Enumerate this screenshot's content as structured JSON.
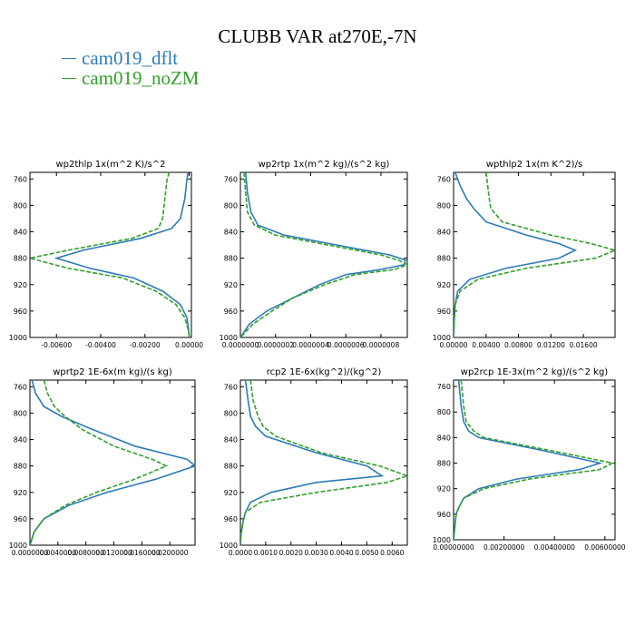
{
  "title": "CLUBB VAR at270E,-7N",
  "colors": {
    "blue": "#2c7bb6",
    "green": "#33a02c"
  },
  "legend": [
    {
      "name": "cam019_dflt",
      "color": "#2c7bb6",
      "style": "solid"
    },
    {
      "name": "cam019_noZM",
      "color": "#33a02c",
      "style": "dashed"
    }
  ],
  "chart_data": [
    {
      "type": "line",
      "title": "wp2thlp  1x(m^2 K)/s^2",
      "xlim": [
        -0.0072,
        0.0001
      ],
      "ylim": [
        1000,
        750
      ],
      "xticks": [
        -0.006,
        -0.004,
        -0.002,
        0.0
      ],
      "xtick_labels": [
        "-0.00600",
        "-0.00400",
        "-0.00200",
        "0.00000"
      ],
      "yticks": [
        760,
        800,
        840,
        880,
        920,
        960,
        1000
      ],
      "series": [
        {
          "name": "cam019_dflt",
          "y": [
            750,
            760,
            790,
            820,
            835,
            850,
            868,
            880,
            895,
            910,
            930,
            950,
            970,
            990,
            1000
          ],
          "x": [
            -5e-05,
            -0.0001,
            -0.0002,
            -0.0004,
            -0.0008,
            -0.0022,
            -0.0048,
            -0.006,
            -0.0045,
            -0.0025,
            -0.0012,
            -0.0004,
            -0.0001,
            -2e-05,
            0.0
          ]
        },
        {
          "name": "cam019_noZM",
          "y": [
            750,
            760,
            790,
            820,
            835,
            850,
            868,
            880,
            895,
            910,
            930,
            950,
            970,
            990,
            1000
          ],
          "x": [
            -0.0009,
            -0.001,
            -0.0011,
            -0.0012,
            -0.0014,
            -0.0026,
            -0.0055,
            -0.0072,
            -0.0055,
            -0.003,
            -0.0015,
            -0.0006,
            -0.0002,
            -3e-05,
            0.0
          ]
        }
      ]
    },
    {
      "type": "line",
      "title": "wp2rtp  1x(m^2 kg)/(s^2 kg)",
      "xlim": [
        0.0,
        9.5e-07
      ],
      "ylim": [
        1000,
        750
      ],
      "xticks": [
        0.0,
        2e-07,
        4e-07,
        6e-07,
        8e-07
      ],
      "xtick_labels": [
        "0.0000000",
        "0.0000002",
        "0.0000004",
        "0.0000006",
        "0.0000008"
      ],
      "yticks": [
        760,
        800,
        840,
        880,
        920,
        960,
        1000
      ],
      "series": [
        {
          "name": "cam019_dflt",
          "y": [
            750,
            780,
            810,
            830,
            845,
            860,
            875,
            883,
            890,
            897,
            905,
            920,
            940,
            960,
            980,
            1000
          ],
          "x": [
            3e-08,
            4e-08,
            6e-08,
            1e-07,
            2.5e-07,
            5.5e-07,
            8.5e-07,
            9.4e-07,
            9.3e-07,
            8e-07,
            6e-07,
            4.5e-07,
            3e-07,
            1.5e-07,
            5e-08,
            0.0
          ]
        },
        {
          "name": "cam019_noZM",
          "y": [
            750,
            780,
            810,
            830,
            845,
            860,
            875,
            883,
            890,
            897,
            905,
            920,
            940,
            960,
            980,
            1000
          ],
          "x": [
            2e-08,
            3e-08,
            4e-08,
            8e-08,
            2e-07,
            5e-07,
            8e-07,
            9e-07,
            9.5e-07,
            8.8e-07,
            6.5e-07,
            4.8e-07,
            3e-07,
            1.8e-07,
            7e-08,
            0.0
          ]
        }
      ]
    },
    {
      "type": "line",
      "title": "wpthlp2  1x(m K^2)/s",
      "xlim": [
        0.0,
        0.0199
      ],
      "ylim": [
        1000,
        750
      ],
      "xticks": [
        0.0,
        0.004,
        0.008,
        0.012,
        0.016
      ],
      "xtick_labels": [
        "0.00000",
        "0.00400",
        "0.00800",
        "0.01200",
        "0.01600"
      ],
      "yticks": [
        760,
        800,
        840,
        880,
        920,
        960,
        1000
      ],
      "series": [
        {
          "name": "cam019_dflt",
          "y": [
            750,
            770,
            790,
            805,
            825,
            845,
            858,
            868,
            880,
            895,
            912,
            930,
            950,
            970,
            1000
          ],
          "x": [
            0.0002,
            0.0008,
            0.0016,
            0.0025,
            0.004,
            0.009,
            0.013,
            0.015,
            0.013,
            0.0065,
            0.002,
            0.0005,
            0.0002,
            0.0001,
            0.0
          ]
        },
        {
          "name": "cam019_noZM",
          "y": [
            750,
            770,
            790,
            805,
            825,
            845,
            858,
            868,
            880,
            895,
            912,
            930,
            950,
            970,
            1000
          ],
          "x": [
            0.004,
            0.0042,
            0.0044,
            0.0046,
            0.006,
            0.012,
            0.017,
            0.0199,
            0.0175,
            0.009,
            0.003,
            0.0008,
            0.0002,
            0.0001,
            0.0
          ]
        }
      ]
    },
    {
      "type": "line",
      "title": "wprtp2  1E-6x(m kg)/(s kg)",
      "xlim": [
        0.0,
        0.0236
      ],
      "ylim": [
        1000,
        750
      ],
      "xticks": [
        0.0,
        0.004,
        0.008,
        0.012,
        0.016,
        0.02
      ],
      "xtick_labels": [
        "0.0000000",
        "0.0040000",
        "0.0080000",
        "0.0120000",
        "0.0160000",
        "0.0200000"
      ],
      "yticks": [
        760,
        800,
        840,
        880,
        920,
        960,
        1000
      ],
      "series": [
        {
          "name": "cam019_dflt",
          "y": [
            750,
            770,
            790,
            805,
            825,
            850,
            870,
            880,
            900,
            920,
            940,
            960,
            980,
            1000
          ],
          "x": [
            0.0003,
            0.0008,
            0.002,
            0.0045,
            0.009,
            0.015,
            0.0225,
            0.0236,
            0.018,
            0.011,
            0.0055,
            0.002,
            0.0006,
            0.0
          ]
        },
        {
          "name": "cam019_noZM",
          "y": [
            750,
            770,
            790,
            805,
            825,
            850,
            870,
            880,
            900,
            920,
            940,
            960,
            980,
            1000
          ],
          "x": [
            0.002,
            0.0025,
            0.0035,
            0.005,
            0.0075,
            0.012,
            0.0175,
            0.0195,
            0.015,
            0.0095,
            0.005,
            0.002,
            0.0006,
            0.0
          ]
        }
      ]
    },
    {
      "type": "line",
      "title": "rcp2  1E-6x(kg^2)/(kg^2)",
      "xlim": [
        0.0,
        0.0066
      ],
      "ylim": [
        1000,
        750
      ],
      "xticks": [
        0.0,
        0.001,
        0.002,
        0.003,
        0.004,
        0.005,
        0.006
      ],
      "xtick_labels": [
        "0.0000",
        "0.0010",
        "0.0020",
        "0.0030",
        "0.0040",
        "0.0050",
        "0.0060"
      ],
      "yticks": [
        760,
        800,
        840,
        880,
        920,
        960,
        1000
      ],
      "series": [
        {
          "name": "cam019_dflt",
          "y": [
            750,
            780,
            805,
            820,
            835,
            860,
            880,
            895,
            905,
            920,
            935,
            950,
            965,
            985,
            1000
          ],
          "x": [
            0.0002,
            0.0003,
            0.0004,
            0.0006,
            0.001,
            0.003,
            0.005,
            0.0056,
            0.003,
            0.0012,
            0.0004,
            0.0002,
            0.0001,
            2e-05,
            0.0
          ]
        },
        {
          "name": "cam019_noZM",
          "y": [
            750,
            780,
            805,
            820,
            835,
            860,
            880,
            895,
            905,
            920,
            935,
            950,
            965,
            985,
            1000
          ],
          "x": [
            0.0004,
            0.0005,
            0.0007,
            0.0009,
            0.0014,
            0.0032,
            0.0055,
            0.0066,
            0.0058,
            0.003,
            0.0008,
            0.0002,
            0.0001,
            2e-05,
            0.0
          ]
        }
      ]
    },
    {
      "type": "line",
      "title": "wp2rcp  1E-3x(m^2 kg)/(s^2 kg)",
      "xlim": [
        0.0,
        0.0064
      ],
      "ylim": [
        1000,
        750
      ],
      "xticks": [
        0.0,
        0.002,
        0.004,
        0.006
      ],
      "xtick_labels": [
        "0.00000000",
        "0.00200000",
        "0.00400000",
        "0.00600000"
      ],
      "yticks": [
        760,
        800,
        840,
        880,
        920,
        960,
        1000
      ],
      "series": [
        {
          "name": "cam019_dflt",
          "y": [
            750,
            790,
            815,
            830,
            840,
            860,
            880,
            890,
            905,
            920,
            935,
            950,
            960,
            1000
          ],
          "x": [
            0.0002,
            0.0003,
            0.0004,
            0.0006,
            0.001,
            0.0035,
            0.0058,
            0.005,
            0.0025,
            0.001,
            0.0004,
            0.0002,
            0.0001,
            0.0
          ]
        },
        {
          "name": "cam019_noZM",
          "y": [
            750,
            790,
            815,
            830,
            840,
            860,
            880,
            890,
            905,
            920,
            935,
            950,
            960,
            1000
          ],
          "x": [
            0.0003,
            0.0004,
            0.0005,
            0.0008,
            0.0012,
            0.0038,
            0.0063,
            0.0058,
            0.003,
            0.0012,
            0.0004,
            0.0002,
            0.0001,
            0.0
          ]
        }
      ]
    }
  ]
}
